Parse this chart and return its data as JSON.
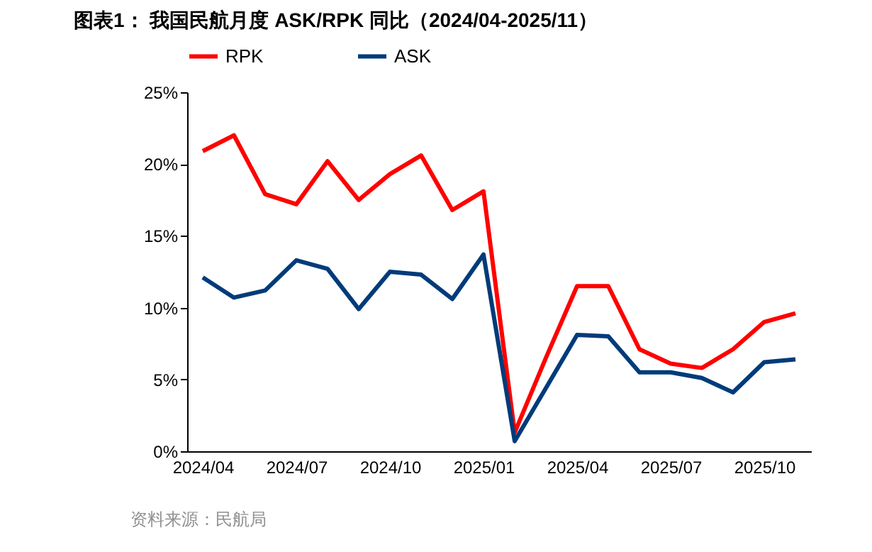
{
  "chart_data": {
    "type": "line",
    "title": "图表1：  我国民航月度 ASK/RPK 同比（2024/04-2025/11）",
    "categories": [
      "2024/04",
      null,
      null,
      "2024/07",
      null,
      null,
      "2024/10",
      null,
      null,
      "2025/01",
      null,
      null,
      "2025/04",
      null,
      null,
      "2025/07",
      null,
      null,
      "2025/10",
      null
    ],
    "series": [
      {
        "name": "RPK",
        "color": "#ff0000",
        "values": [
          20.9,
          22.0,
          17.9,
          17.2,
          20.2,
          17.5,
          19.3,
          20.6,
          16.8,
          18.1,
          1.3,
          6.5,
          11.5,
          11.5,
          7.1,
          6.1,
          5.8,
          7.1,
          9.0,
          9.6
        ]
      },
      {
        "name": "ASK",
        "color": "#003b7a",
        "values": [
          12.1,
          10.7,
          11.2,
          13.3,
          12.7,
          9.9,
          12.5,
          12.3,
          10.6,
          13.7,
          0.7,
          4.4,
          8.1,
          8.0,
          5.5,
          5.5,
          5.1,
          4.1,
          6.2,
          6.4
        ]
      }
    ],
    "ylim": [
      0,
      25
    ],
    "yticks": [
      {
        "value": 0,
        "label": "0%"
      },
      {
        "value": 5,
        "label": "5%"
      },
      {
        "value": 10,
        "label": "10%"
      },
      {
        "value": 15,
        "label": "15%"
      },
      {
        "value": 20,
        "label": "20%"
      },
      {
        "value": 25,
        "label": "25%"
      }
    ],
    "grid": false,
    "legend": "top",
    "marker": "none",
    "line_style": "solid",
    "annotations": [
      "资料来源：民航局"
    ]
  }
}
